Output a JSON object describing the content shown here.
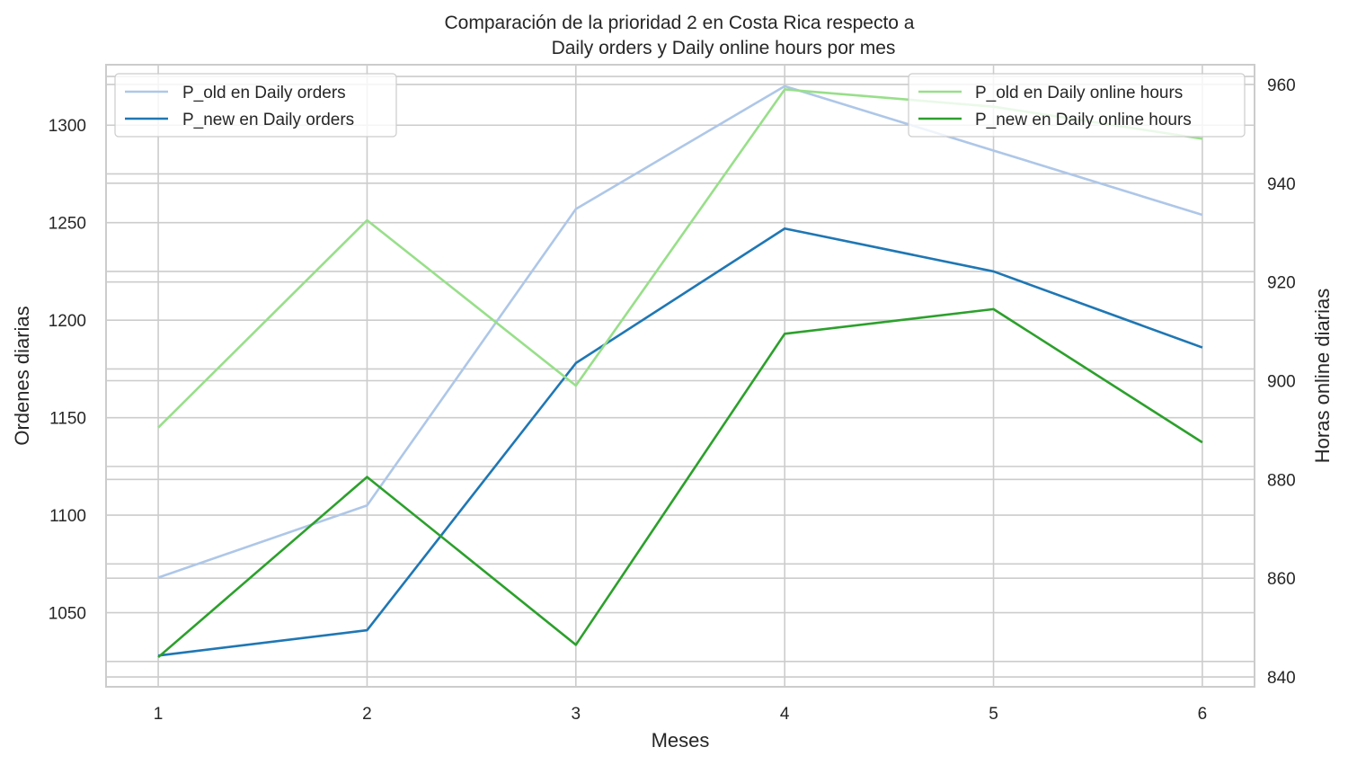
{
  "chart_data": {
    "type": "line",
    "title_lines": [
      "Comparación de la prioridad 2 en Costa Rica respecto a",
      "Daily orders y Daily online hours por mes"
    ],
    "xlabel": "Meses",
    "ylabel_left": "Ordenes diarias",
    "ylabel_right": "Horas online diarias",
    "x": [
      1,
      2,
      3,
      4,
      5,
      6
    ],
    "xlim": [
      0.75,
      6.25
    ],
    "left_axis": {
      "ylim": [
        1012,
        1331
      ],
      "ticks": [
        1050,
        1100,
        1150,
        1200,
        1250,
        1300
      ],
      "minor_grid": [
        1025,
        1075,
        1125,
        1175,
        1225,
        1275,
        1325
      ],
      "series": [
        {
          "name": "P_old en Daily orders",
          "color": "#aec7e8",
          "values": [
            1068,
            1105,
            1257,
            1320,
            1287,
            1254
          ]
        },
        {
          "name": "P_new en Daily orders",
          "color": "#1f77b4",
          "values": [
            1028,
            1041,
            1178,
            1247,
            1225,
            1186
          ]
        }
      ],
      "legend_position": "top-left"
    },
    "right_axis": {
      "ylim": [
        838,
        964
      ],
      "ticks": [
        840,
        860,
        880,
        900,
        920,
        940,
        960
      ],
      "series": [
        {
          "name": "P_old en Daily online hours",
          "color": "#98df8a",
          "values": [
            890.5,
            932.5,
            899,
            959,
            955.5,
            949
          ]
        },
        {
          "name": "P_new en Daily online hours",
          "color": "#2ca02c",
          "values": [
            844,
            880.5,
            846.5,
            909.5,
            914.5,
            887.5
          ]
        }
      ],
      "legend_position": "top-right"
    },
    "grid": true
  }
}
